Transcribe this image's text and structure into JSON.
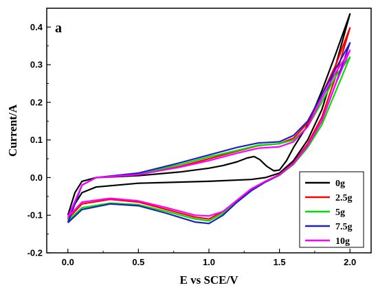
{
  "chart_data": {
    "type": "line",
    "panel_label": "a",
    "xlabel": "E vs SCE/V",
    "ylabel": "Current/A",
    "xlim": [
      -0.15,
      2.15
    ],
    "ylim": [
      -0.2,
      0.45
    ],
    "x_ticks": [
      0.0,
      0.5,
      1.0,
      1.5,
      2.0
    ],
    "x_tick_labels": [
      "0.0",
      "0.5",
      "1.0",
      "1.5",
      "2.0"
    ],
    "y_ticks": [
      -0.2,
      -0.1,
      0.0,
      0.1,
      0.2,
      0.3,
      0.4
    ],
    "y_tick_labels": [
      "-0.2",
      "-0.1",
      "0.0",
      "0.1",
      "0.2",
      "0.3",
      "0.4"
    ],
    "grid": false,
    "legend_position": "bottom-right",
    "series": [
      {
        "name": "0g",
        "color": "#000000",
        "forward": [
          [
            0.0,
            -0.1
          ],
          [
            0.05,
            -0.04
          ],
          [
            0.1,
            -0.01
          ],
          [
            0.2,
            0.0
          ],
          [
            0.5,
            0.005
          ],
          [
            0.8,
            0.015
          ],
          [
            1.0,
            0.025
          ],
          [
            1.1,
            0.032
          ],
          [
            1.2,
            0.042
          ],
          [
            1.27,
            0.052
          ],
          [
            1.32,
            0.056
          ],
          [
            1.36,
            0.048
          ],
          [
            1.41,
            0.03
          ],
          [
            1.46,
            0.018
          ],
          [
            1.5,
            0.02
          ],
          [
            1.55,
            0.045
          ],
          [
            1.6,
            0.08
          ],
          [
            1.7,
            0.14
          ],
          [
            1.8,
            0.23
          ],
          [
            1.9,
            0.33
          ],
          [
            2.0,
            0.435
          ]
        ],
        "reverse": [
          [
            2.0,
            0.435
          ],
          [
            1.9,
            0.3
          ],
          [
            1.8,
            0.18
          ],
          [
            1.7,
            0.1
          ],
          [
            1.6,
            0.045
          ],
          [
            1.5,
            0.012
          ],
          [
            1.4,
            0.0
          ],
          [
            1.3,
            -0.005
          ],
          [
            1.0,
            -0.01
          ],
          [
            0.5,
            -0.015
          ],
          [
            0.2,
            -0.025
          ],
          [
            0.1,
            -0.04
          ],
          [
            0.05,
            -0.07
          ],
          [
            0.0,
            -0.1
          ]
        ]
      },
      {
        "name": "2.5g",
        "color": "#ff0000",
        "forward": [
          [
            0.0,
            -0.11
          ],
          [
            0.1,
            -0.02
          ],
          [
            0.2,
            0.0
          ],
          [
            0.5,
            0.008
          ],
          [
            0.8,
            0.03
          ],
          [
            1.0,
            0.05
          ],
          [
            1.2,
            0.07
          ],
          [
            1.35,
            0.085
          ],
          [
            1.5,
            0.09
          ],
          [
            1.6,
            0.105
          ],
          [
            1.7,
            0.145
          ],
          [
            1.8,
            0.22
          ],
          [
            1.9,
            0.3
          ],
          [
            2.0,
            0.398
          ]
        ],
        "reverse": [
          [
            2.0,
            0.398
          ],
          [
            1.9,
            0.27
          ],
          [
            1.8,
            0.16
          ],
          [
            1.7,
            0.09
          ],
          [
            1.6,
            0.04
          ],
          [
            1.5,
            0.008
          ],
          [
            1.4,
            -0.01
          ],
          [
            1.3,
            -0.03
          ],
          [
            1.2,
            -0.06
          ],
          [
            1.1,
            -0.09
          ],
          [
            1.0,
            -0.11
          ],
          [
            0.9,
            -0.105
          ],
          [
            0.7,
            -0.085
          ],
          [
            0.5,
            -0.065
          ],
          [
            0.3,
            -0.058
          ],
          [
            0.1,
            -0.07
          ],
          [
            0.0,
            -0.11
          ]
        ]
      },
      {
        "name": "5g",
        "color": "#00e000",
        "forward": [
          [
            0.0,
            -0.115
          ],
          [
            0.1,
            -0.02
          ],
          [
            0.2,
            0.0
          ],
          [
            0.5,
            0.01
          ],
          [
            0.8,
            0.035
          ],
          [
            1.0,
            0.055
          ],
          [
            1.2,
            0.072
          ],
          [
            1.35,
            0.086
          ],
          [
            1.5,
            0.09
          ],
          [
            1.6,
            0.1
          ],
          [
            1.7,
            0.135
          ],
          [
            1.8,
            0.2
          ],
          [
            1.9,
            0.27
          ],
          [
            2.0,
            0.32
          ]
        ],
        "reverse": [
          [
            2.0,
            0.32
          ],
          [
            1.9,
            0.23
          ],
          [
            1.8,
            0.14
          ],
          [
            1.7,
            0.08
          ],
          [
            1.6,
            0.035
          ],
          [
            1.5,
            0.006
          ],
          [
            1.4,
            -0.012
          ],
          [
            1.3,
            -0.035
          ],
          [
            1.2,
            -0.065
          ],
          [
            1.1,
            -0.095
          ],
          [
            1.0,
            -0.115
          ],
          [
            0.9,
            -0.11
          ],
          [
            0.7,
            -0.09
          ],
          [
            0.5,
            -0.072
          ],
          [
            0.3,
            -0.068
          ],
          [
            0.1,
            -0.08
          ],
          [
            0.0,
            -0.115
          ]
        ]
      },
      {
        "name": "7.5g",
        "color": "#1f1fbf",
        "forward": [
          [
            0.0,
            -0.12
          ],
          [
            0.1,
            -0.02
          ],
          [
            0.2,
            0.0
          ],
          [
            0.5,
            0.012
          ],
          [
            0.8,
            0.04
          ],
          [
            1.0,
            0.06
          ],
          [
            1.2,
            0.08
          ],
          [
            1.35,
            0.092
          ],
          [
            1.5,
            0.095
          ],
          [
            1.6,
            0.112
          ],
          [
            1.7,
            0.15
          ],
          [
            1.8,
            0.22
          ],
          [
            1.9,
            0.29
          ],
          [
            2.0,
            0.358
          ]
        ],
        "reverse": [
          [
            2.0,
            0.358
          ],
          [
            1.9,
            0.25
          ],
          [
            1.8,
            0.15
          ],
          [
            1.7,
            0.085
          ],
          [
            1.6,
            0.038
          ],
          [
            1.5,
            0.007
          ],
          [
            1.4,
            -0.012
          ],
          [
            1.3,
            -0.035
          ],
          [
            1.2,
            -0.065
          ],
          [
            1.1,
            -0.1
          ],
          [
            1.0,
            -0.122
          ],
          [
            0.9,
            -0.118
          ],
          [
            0.7,
            -0.095
          ],
          [
            0.5,
            -0.075
          ],
          [
            0.3,
            -0.07
          ],
          [
            0.1,
            -0.085
          ],
          [
            0.0,
            -0.12
          ]
        ]
      },
      {
        "name": "10g",
        "color": "#ff00ff",
        "forward": [
          [
            0.0,
            -0.105
          ],
          [
            0.1,
            -0.02
          ],
          [
            0.2,
            0.0
          ],
          [
            0.5,
            0.008
          ],
          [
            0.8,
            0.028
          ],
          [
            1.0,
            0.045
          ],
          [
            1.2,
            0.065
          ],
          [
            1.35,
            0.078
          ],
          [
            1.5,
            0.082
          ],
          [
            1.6,
            0.095
          ],
          [
            1.7,
            0.135
          ],
          [
            1.8,
            0.21
          ],
          [
            1.9,
            0.28
          ],
          [
            2.0,
            0.338
          ]
        ],
        "reverse": [
          [
            2.0,
            0.338
          ],
          [
            1.9,
            0.25
          ],
          [
            1.8,
            0.15
          ],
          [
            1.7,
            0.085
          ],
          [
            1.6,
            0.037
          ],
          [
            1.5,
            0.007
          ],
          [
            1.4,
            -0.01
          ],
          [
            1.3,
            -0.03
          ],
          [
            1.2,
            -0.06
          ],
          [
            1.1,
            -0.09
          ],
          [
            1.0,
            -0.102
          ],
          [
            0.9,
            -0.1
          ],
          [
            0.7,
            -0.08
          ],
          [
            0.5,
            -0.062
          ],
          [
            0.3,
            -0.055
          ],
          [
            0.1,
            -0.065
          ],
          [
            0.0,
            -0.105
          ]
        ]
      }
    ]
  }
}
